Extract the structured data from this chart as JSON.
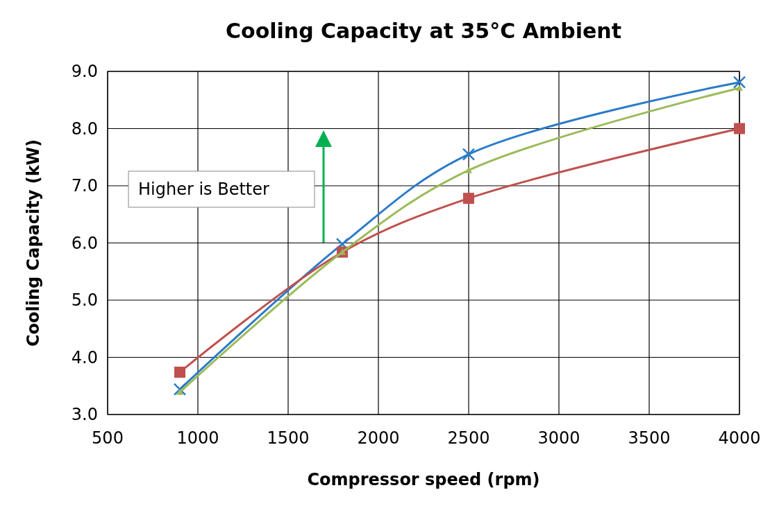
{
  "chart_data": {
    "type": "line",
    "title": "Cooling Capacity at 35°C Ambient",
    "xlabel": "Compressor speed (rpm)",
    "ylabel": "Cooling Capacity (kW)",
    "x": [
      900,
      1800,
      2500,
      4000
    ],
    "series": [
      {
        "color": "#2a7ac8",
        "marker": "cross",
        "values": [
          3.44,
          5.98,
          7.55,
          8.81
        ]
      },
      {
        "color": "#c0504d",
        "marker": "square",
        "values": [
          3.74,
          5.84,
          6.78,
          8.0
        ]
      },
      {
        "color": "#9bbb59",
        "marker": "triangle",
        "values": [
          3.39,
          5.84,
          7.27,
          8.71
        ]
      }
    ],
    "xlim": [
      500,
      4000
    ],
    "xticks": [
      500,
      1000,
      1500,
      2000,
      2500,
      3000,
      3500,
      4000
    ],
    "ylim": [
      3.0,
      9.0
    ],
    "yticks": [
      {
        "value": 3,
        "label": "3.0"
      },
      {
        "value": 4,
        "label": "4.0"
      },
      {
        "value": 5,
        "label": "5.0"
      },
      {
        "value": 6,
        "label": "6.0"
      },
      {
        "value": 7,
        "label": "7.0"
      },
      {
        "value": 8,
        "label": "8.0"
      },
      {
        "value": 9,
        "label": "9.0"
      }
    ],
    "grid": true,
    "annotations": [
      "Higher is Better"
    ]
  }
}
